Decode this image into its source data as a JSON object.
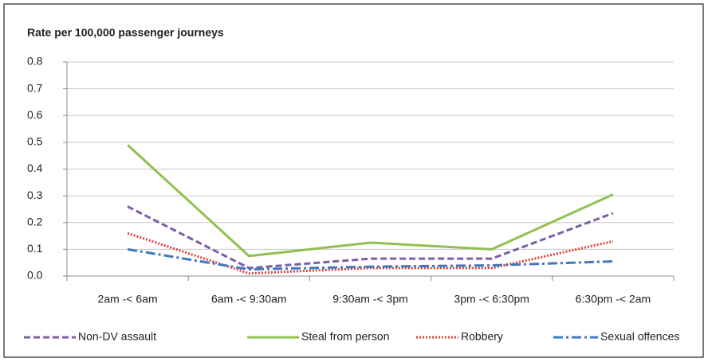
{
  "chart_data": {
    "type": "line",
    "title": "Rate per 100,000 passenger journeys",
    "categories": [
      "2am -< 6am",
      "6am -< 9:30am",
      "9:30am -< 3pm",
      "3pm -< 6:30pm",
      "6:30pm -< 2am"
    ],
    "series": [
      {
        "name": "Non-DV assault",
        "color": "#7b5fa6",
        "style": "dashed",
        "values": [
          0.26,
          0.03,
          0.065,
          0.065,
          0.235
        ]
      },
      {
        "name": "Steal from person",
        "color": "#92c050",
        "style": "solid",
        "values": [
          0.49,
          0.075,
          0.125,
          0.1,
          0.305
        ]
      },
      {
        "name": "Robbery",
        "color": "#e0403a",
        "style": "dotted",
        "values": [
          0.16,
          0.01,
          0.03,
          0.03,
          0.13
        ]
      },
      {
        "name": "Sexual offences",
        "color": "#3d78c0",
        "style": "dashdot",
        "values": [
          0.1,
          0.025,
          0.035,
          0.04,
          0.055
        ]
      }
    ],
    "ylim": [
      0,
      0.8
    ],
    "yticks": [
      {
        "value": 0,
        "label": "0.0"
      },
      0.1,
      0.2,
      0.3,
      0.4,
      0.5,
      0.6,
      0.7,
      0.8
    ],
    "grid": true,
    "legend": "bottom"
  }
}
